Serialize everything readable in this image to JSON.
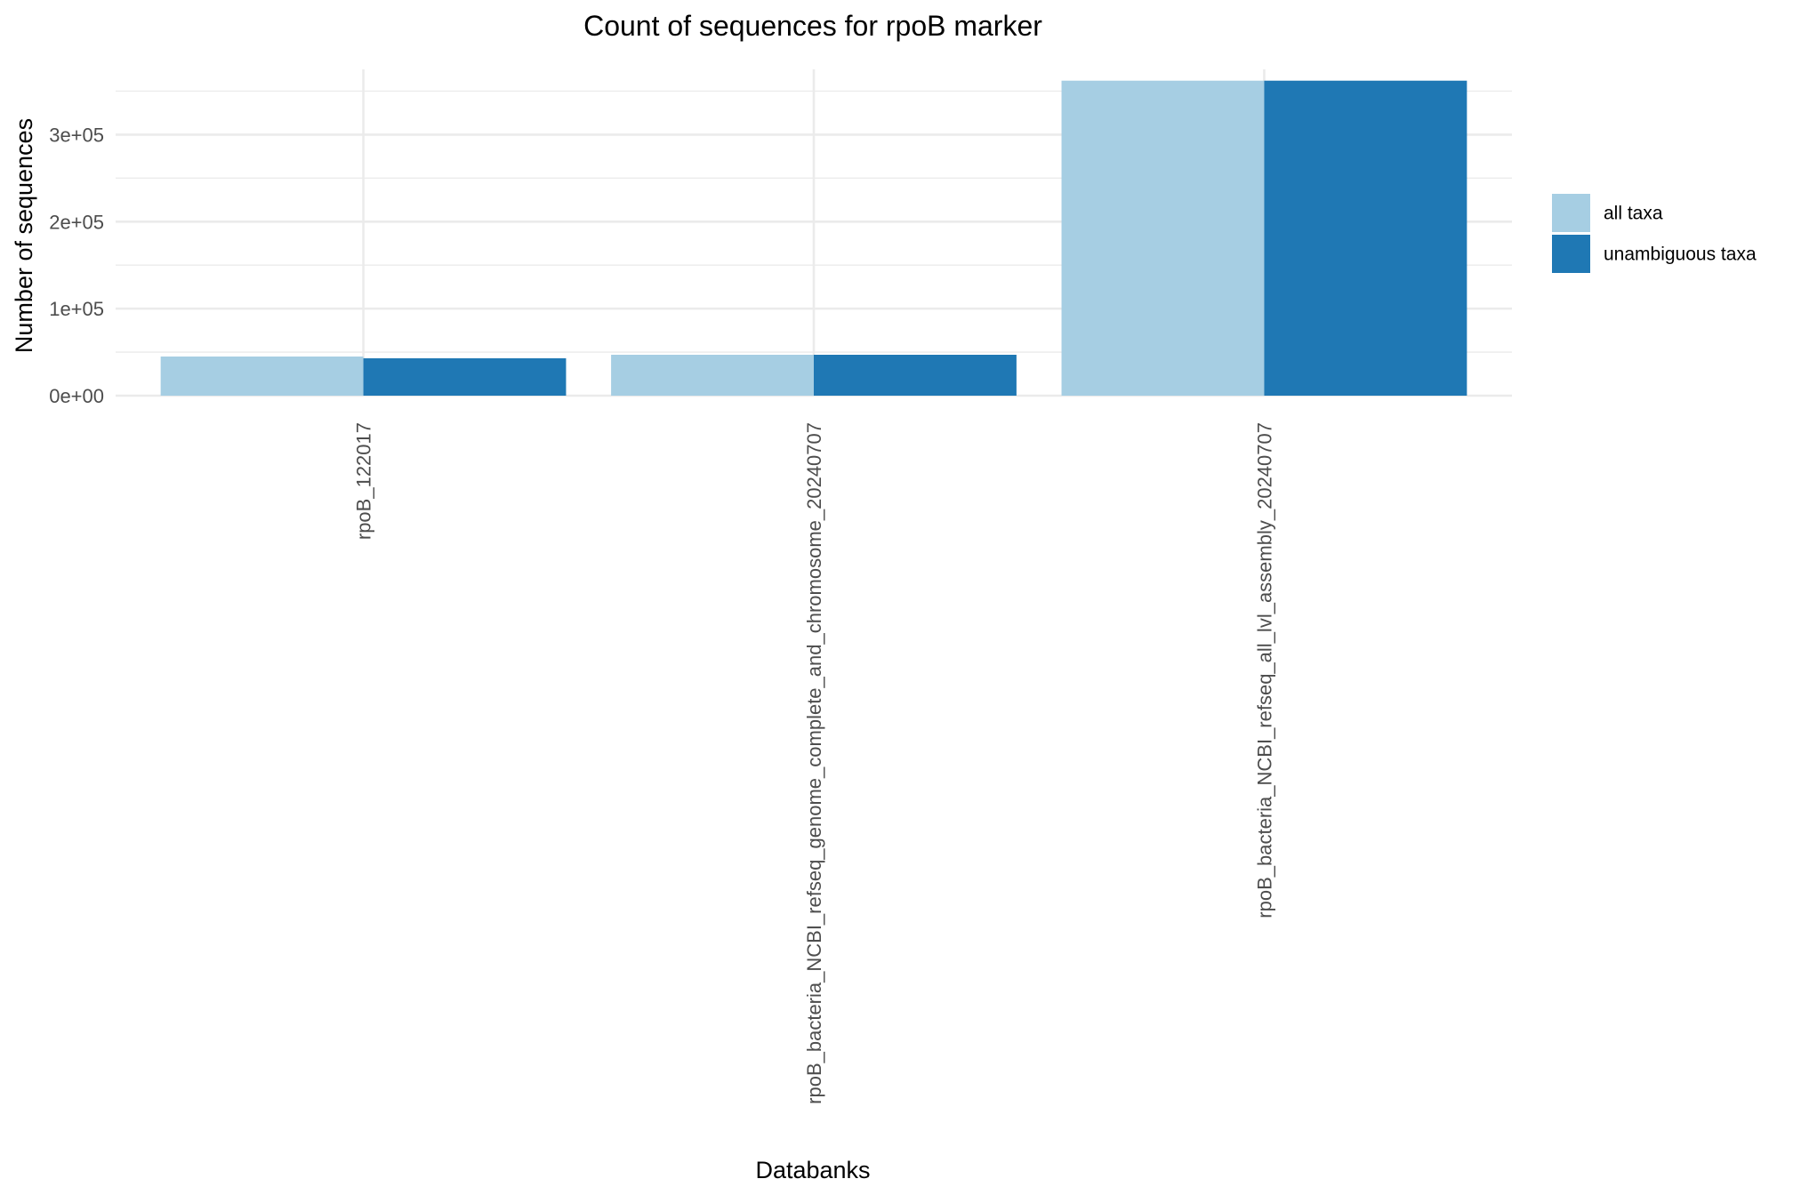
{
  "chart_data": {
    "type": "bar",
    "title": "Count of sequences for rpoB marker",
    "xlabel": "Databanks",
    "ylabel": "Number of sequences",
    "categories": [
      "rpoB_122017",
      "rpoB_bacteria_NCBI_refseq_genome_complete_and_chromosome_20240707",
      "rpoB_bacteria_NCBI_refseq_all_lvl_assembly_20240707"
    ],
    "series": [
      {
        "name": "all taxa",
        "color": "#a6cee3",
        "values": [
          45000,
          47000,
          362000
        ]
      },
      {
        "name": "unambiguous taxa",
        "color": "#1f78b4",
        "values": [
          43000,
          47000,
          362000
        ]
      }
    ],
    "ylim": [
      0,
      375000
    ],
    "yticks": [
      0,
      100000,
      200000,
      300000
    ],
    "ytick_labels": [
      "0e+00",
      "1e+05",
      "2e+05",
      "3e+05"
    ],
    "grid": true,
    "legend_position": "right"
  }
}
